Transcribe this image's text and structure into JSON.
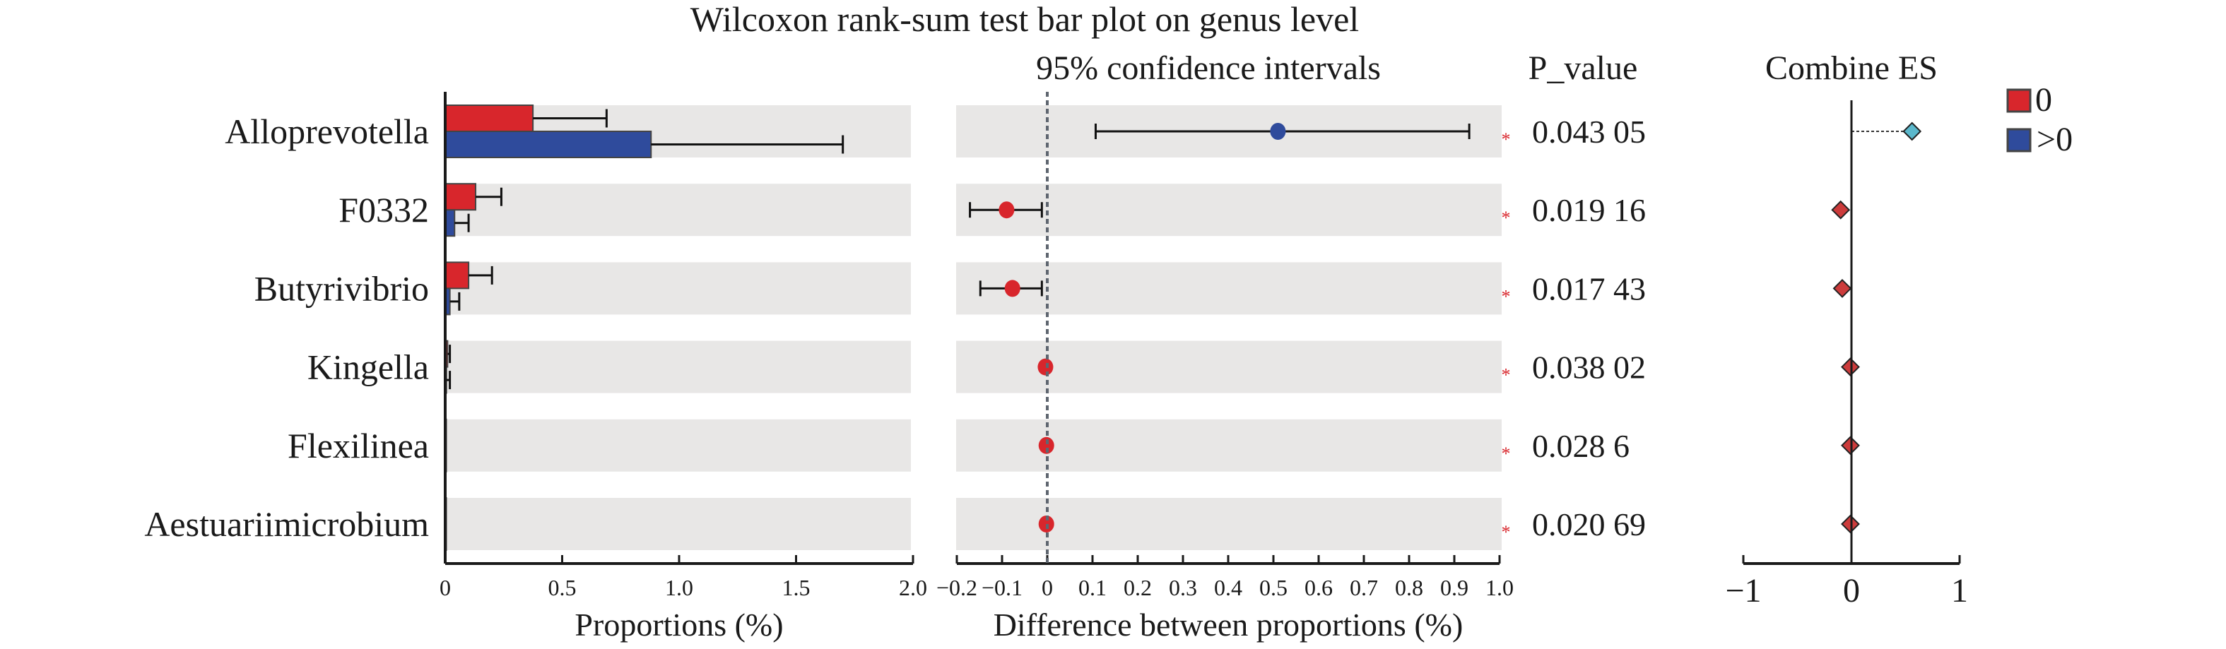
{
  "chart_data": {
    "type": "bar",
    "title": "Wilcoxon rank-sum test bar plot on genus level",
    "categories": [
      "Alloprevotella",
      "F0332",
      "Butyrivibrio",
      "Kingella",
      "Flexilinea",
      "Aestuariimicrobium"
    ],
    "proportions_panel": {
      "xlabel": "Proportions (%)",
      "xlim": [
        0,
        2.0
      ],
      "ticks": [
        0,
        0.5,
        1.0,
        1.5,
        2.0
      ],
      "tick_labels": [
        "0",
        "0.5",
        "1.0",
        "1.5",
        "2.0"
      ],
      "series": [
        {
          "name": "0",
          "color": "#d8262c",
          "values": [
            0.375,
            0.13,
            0.1,
            0.01,
            0.003,
            0.002
          ],
          "error_upper": [
            0.69,
            0.24,
            0.2,
            0.02,
            0.006,
            0.004
          ]
        },
        {
          "name": ">0",
          "color": "#2f4b9c",
          "values": [
            0.88,
            0.04,
            0.02,
            0.005,
            0.002,
            0.001
          ],
          "error_upper": [
            1.7,
            0.1,
            0.06,
            0.02,
            0.004,
            0.003
          ]
        }
      ]
    },
    "ci_panel": {
      "header": "95% confidence intervals",
      "xlabel": "Difference between proportions (%)",
      "xlim": [
        -0.2,
        1.0
      ],
      "ticks": [
        -0.2,
        -0.1,
        0,
        0.1,
        0.2,
        0.3,
        0.4,
        0.5,
        0.6,
        0.7,
        0.8,
        0.9,
        1.0
      ],
      "tick_labels": [
        "−0.2",
        "−0.1",
        "0",
        "0.1",
        "0.2",
        "0.3",
        "0.4",
        "0.5",
        "0.6",
        "0.7",
        "0.8",
        "0.9",
        "1.0"
      ],
      "estimates": [
        0.51,
        -0.09,
        -0.077,
        -0.004,
        -0.002,
        -0.002
      ],
      "ci_low": [
        0.107,
        -0.171,
        -0.148,
        null,
        null,
        null
      ],
      "ci_high": [
        0.933,
        -0.012,
        -0.012,
        null,
        null,
        null
      ],
      "point_colors": [
        "#2f4b9c",
        "#d8262c",
        "#d8262c",
        "#d8262c",
        "#d8262c",
        "#d8262c"
      ]
    },
    "p_values": {
      "header": "P_value",
      "values": [
        "0.043 05",
        "0.019 16",
        "0.017 43",
        "0.038 02",
        "0.028 6",
        "0.020 69"
      ],
      "significance": [
        "*",
        "*",
        "*",
        "*",
        "*",
        "*"
      ]
    },
    "effect_size_panel": {
      "header": "Combine ES",
      "xlim": [
        -1,
        1
      ],
      "ticks": [
        -1,
        0,
        1
      ],
      "tick_labels": [
        "−1",
        "0",
        "1"
      ],
      "values": [
        0.56,
        -0.1,
        -0.085,
        -0.01,
        -0.01,
        -0.01
      ],
      "colors": [
        "#5bb8cc",
        "#cc3b3b",
        "#cc3b3b",
        "#cc3b3b",
        "#cc3b3b",
        "#cc3b3b"
      ]
    },
    "legend": {
      "placement": "top-right",
      "entries": [
        {
          "label": "0",
          "color": "#d8262c"
        },
        {
          "label": ">0",
          "color": "#2f4b9c"
        }
      ]
    },
    "background_band_color": "#e8e7e6",
    "grid": false
  }
}
